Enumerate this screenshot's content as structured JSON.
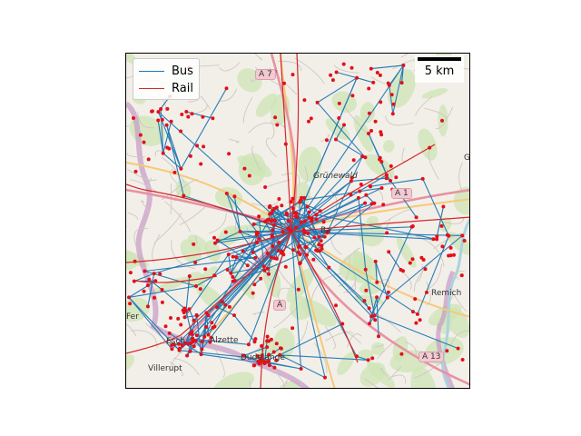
{
  "legend": {
    "items": [
      {
        "label": "Bus",
        "color": "#1f77b4"
      },
      {
        "label": "Rail",
        "color": "#d62728"
      }
    ]
  },
  "scalebar": {
    "label": "5 km"
  },
  "map": {
    "place_labels": [
      "Grünewald",
      "Villerupt",
      "Dudelange",
      "Alzette",
      "Remich",
      "Fer",
      "G",
      "Esch",
      "Ba"
    ],
    "road_shields": [
      "A 7",
      "A 1",
      "A 13",
      "A"
    ],
    "colors": {
      "land": "#f2efe9",
      "forest": "#cde4b4",
      "border": "#c79ac6",
      "motorway": "#e892a2",
      "primary_road": "#f6c977",
      "minor_road": "#cfc8c0",
      "river": "#aad3df",
      "bus_line": "#1f77b4",
      "rail_line": "#d62728",
      "stop": "#e3101a"
    }
  }
}
